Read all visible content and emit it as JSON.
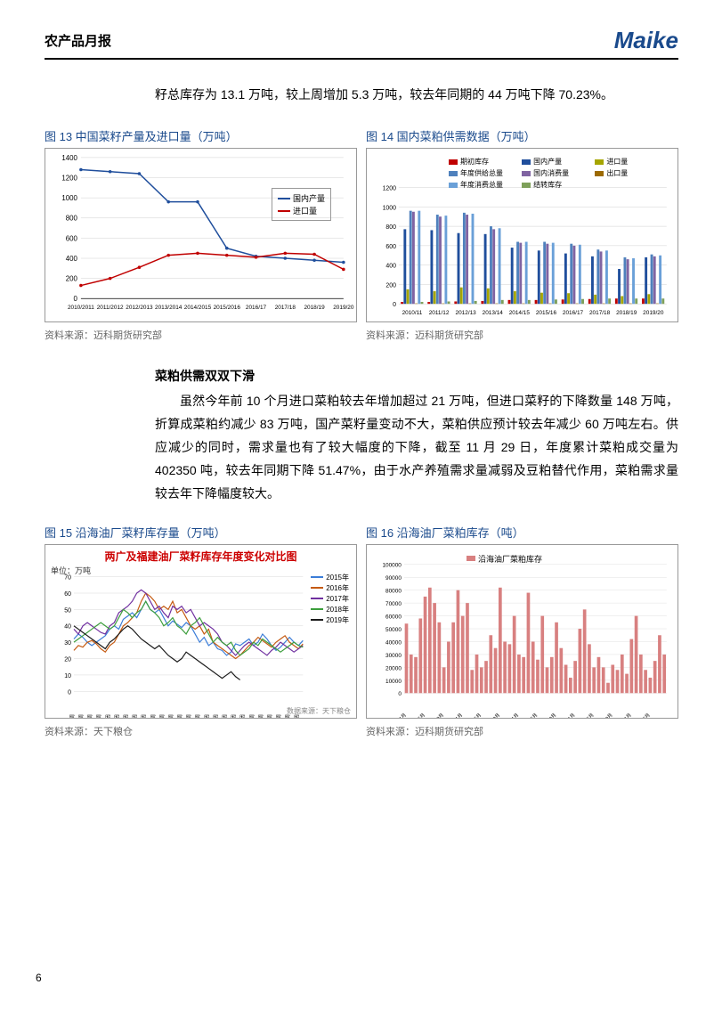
{
  "header": {
    "title": "农产品月报",
    "logo": "Maike"
  },
  "intro_line": "籽总库存为 13.1 万吨，较上周增加 5.3 万吨，较去年同期的 44 万吨下降 70.23%。",
  "chart13": {
    "caption": "图 13 中国菜籽产量及进口量（万吨）",
    "type": "line",
    "x_labels": [
      "2010/2011",
      "2011/2012",
      "2012/2013",
      "2013/2014",
      "2014/2015",
      "2015/2016",
      "2016/17",
      "2017/18",
      "2018/19",
      "2019/20"
    ],
    "series": [
      {
        "name": "国内产量",
        "color": "#1f4e9c",
        "values": [
          1280,
          1260,
          1240,
          960,
          960,
          500,
          420,
          400,
          380,
          360
        ]
      },
      {
        "name": "进口量",
        "color": "#c00000",
        "values": [
          130,
          200,
          310,
          430,
          450,
          430,
          410,
          450,
          440,
          290
        ]
      }
    ],
    "ylim": [
      0,
      1400
    ],
    "ytick_step": 200,
    "label_fontsize": 8,
    "line_width": 1.5,
    "grid_color": "#d0d0d0",
    "background_color": "#ffffff",
    "source": "资料来源：迈科期货研究部"
  },
  "chart14": {
    "caption": "图 14 国内菜粕供需数据（万吨）",
    "type": "grouped-bar",
    "x_labels": [
      "2010/11",
      "2011/12",
      "2012/13",
      "2013/14",
      "2014/15",
      "2015/16",
      "2016/17",
      "2017/18",
      "2018/19",
      "2019/20"
    ],
    "series_names": [
      "期初库存",
      "国内产量",
      "进口量",
      "年度供给总量",
      "国内消费量",
      "出口量",
      "年度消费总量",
      "结转库存"
    ],
    "series_colors": [
      "#c00000",
      "#1f4e9c",
      "#a5a500",
      "#4f81bd",
      "#8064a2",
      "#9c6a00",
      "#6aa0d8",
      "#7ea05a"
    ],
    "data": [
      [
        20,
        770,
        150,
        960,
        950,
        5,
        960,
        20
      ],
      [
        20,
        760,
        130,
        920,
        900,
        5,
        910,
        25
      ],
      [
        25,
        730,
        170,
        940,
        920,
        5,
        930,
        30
      ],
      [
        30,
        720,
        160,
        800,
        770,
        5,
        780,
        40
      ],
      [
        40,
        580,
        130,
        640,
        630,
        5,
        640,
        40
      ],
      [
        40,
        550,
        115,
        640,
        620,
        5,
        630,
        45
      ],
      [
        45,
        520,
        110,
        620,
        600,
        5,
        610,
        50
      ],
      [
        50,
        490,
        95,
        560,
        540,
        5,
        550,
        55
      ],
      [
        55,
        360,
        80,
        480,
        460,
        5,
        470,
        55
      ],
      [
        55,
        480,
        100,
        510,
        490,
        5,
        500,
        55
      ]
    ],
    "ylim": [
      0,
      1200
    ],
    "ytick_step": 200,
    "label_fontsize": 8,
    "bar_width": 0.08,
    "grid_color": "#d0d0d0",
    "background_color": "#ffffff",
    "source": "资料来源：迈科期货研究部"
  },
  "section2": {
    "sub_title": "菜粕供需双双下滑",
    "body": "虽然今年前 10 个月进口菜粕较去年增加超过 21 万吨，但进口菜籽的下降数量 148 万吨，折算成菜粕约减少 83 万吨，国产菜籽量变动不大，菜粕供应预计较去年减少 60 万吨左右。供应减少的同时，需求量也有了较大幅度的下降，截至 11 月 29 日，年度累计菜粕成交量为 402350 吨，较去年同期下降 51.47%，由于水产养殖需求量减弱及豆粕替代作用，菜粕需求量较去年下降幅度较大。"
  },
  "chart15": {
    "caption": "图 15 沿海油厂菜籽库存量（万吨）",
    "inner_title": "两广及福建油厂菜籽库存年度变化对比图",
    "unit": "单位：万吨",
    "type": "line",
    "x_labels_prefix": "第",
    "x_labels_suffix": "周",
    "x_count": 52,
    "series": [
      {
        "name": "2015年",
        "color": "#3b7dd8",
        "values": [
          32,
          35,
          33,
          30,
          28,
          30,
          32,
          34,
          38,
          40,
          38,
          44,
          46,
          48,
          45,
          50,
          55,
          50,
          48,
          50,
          45,
          40,
          43,
          41,
          39,
          42,
          40,
          35,
          30,
          33,
          28,
          30,
          26,
          25,
          22,
          24,
          29,
          28,
          30,
          32,
          28,
          30,
          35,
          32,
          28,
          25,
          27,
          30,
          33,
          30,
          28,
          31
        ]
      },
      {
        "name": "2016年",
        "color": "#c55a11",
        "values": [
          25,
          28,
          27,
          30,
          31,
          29,
          26,
          24,
          28,
          30,
          35,
          40,
          42,
          45,
          48,
          55,
          60,
          58,
          55,
          50,
          52,
          50,
          55,
          48,
          50,
          45,
          40,
          38,
          40,
          35,
          38,
          30,
          28,
          26,
          24,
          22,
          20,
          22,
          25,
          28,
          30,
          33,
          31,
          29,
          27,
          30,
          32,
          34,
          30,
          28,
          26,
          29
        ]
      },
      {
        "name": "2017年",
        "color": "#7030a0",
        "values": [
          38,
          35,
          40,
          42,
          40,
          38,
          36,
          35,
          40,
          42,
          48,
          50,
          52,
          55,
          60,
          62,
          60,
          55,
          50,
          52,
          48,
          45,
          52,
          50,
          52,
          48,
          50,
          45,
          40,
          42,
          40,
          38,
          35,
          30,
          28,
          25,
          22,
          25,
          28,
          30,
          28,
          26,
          24,
          22,
          25,
          27,
          30,
          28,
          26,
          24,
          26,
          28
        ]
      },
      {
        "name": "2018年",
        "color": "#3c9e3c",
        "values": [
          30,
          32,
          34,
          36,
          38,
          40,
          42,
          40,
          38,
          40,
          45,
          50,
          48,
          45,
          48,
          50,
          55,
          50,
          48,
          45,
          40,
          42,
          45,
          40,
          38,
          35,
          40,
          42,
          45,
          40,
          35,
          30,
          33,
          30,
          28,
          30,
          25,
          22,
          24,
          26,
          30,
          28,
          32,
          30,
          28,
          26,
          24,
          26,
          28,
          30,
          28,
          27
        ]
      },
      {
        "name": "2019年",
        "color": "#1a1a1a",
        "values": [
          40,
          38,
          36,
          34,
          32,
          30,
          28,
          26,
          30,
          32,
          35,
          38,
          40,
          38,
          35,
          32,
          30,
          28,
          26,
          28,
          25,
          22,
          20,
          18,
          20,
          24,
          22,
          20,
          18,
          16,
          14,
          12,
          10,
          8,
          10,
          12,
          9,
          7,
          null,
          null,
          null,
          null,
          null,
          null,
          null,
          null,
          null,
          null,
          null,
          null,
          null,
          null
        ]
      }
    ],
    "ylim": [
      0,
      70
    ],
    "ytick_step": 10,
    "grid_color": "#d8d8d8",
    "background_color": "#ffffff",
    "source_note": "数据来源：天下粮仓",
    "source": "资料来源：天下粮仓"
  },
  "chart16": {
    "caption": "图 16 沿海油厂菜粕库存（吨）",
    "type": "bar",
    "series_name": "沿海油厂菜粕库存",
    "series_color": "#d88080",
    "x_labels": [
      "2015年1月",
      "2月",
      "3月",
      "4月",
      "5月",
      "6月",
      "7月",
      "8月",
      "9月",
      "10月",
      "11月",
      "12月",
      "2016年1月",
      "2月",
      "3月",
      "4月",
      "5月",
      "6月",
      "7月",
      "8月",
      "9月",
      "10月",
      "11月",
      "12月",
      "2017年1月",
      "2月",
      "3月",
      "4月",
      "5月",
      "6月",
      "7月",
      "8月",
      "9月",
      "10月",
      "11月",
      "12月",
      "2018年1月",
      "2月",
      "3月",
      "4月",
      "5月",
      "6月",
      "7月",
      "8月",
      "9月",
      "10月",
      "11月",
      "12月",
      "2019年1月",
      "2月",
      "3月",
      "4月",
      "5月",
      "6月",
      "7月",
      "8月"
    ],
    "values": [
      54000,
      30000,
      28000,
      58000,
      75000,
      82000,
      70000,
      55000,
      20000,
      40000,
      55000,
      80000,
      60000,
      70000,
      18000,
      30000,
      20000,
      25000,
      45000,
      35000,
      82000,
      40000,
      38000,
      60000,
      30000,
      28000,
      78000,
      40000,
      26000,
      60000,
      20000,
      28000,
      55000,
      35000,
      22000,
      12000,
      25000,
      50000,
      65000,
      38000,
      20000,
      28000,
      20000,
      8000,
      22000,
      18000,
      30000,
      15000,
      42000,
      60000,
      30000,
      18000,
      12000,
      25000,
      45000,
      30000
    ],
    "ylim": [
      0,
      100000
    ],
    "ytick_step": 10000,
    "grid_color": "#e0e0e0",
    "background_color": "#ffffff",
    "source": "资料来源：迈科期货研究部"
  },
  "page_number": "6"
}
